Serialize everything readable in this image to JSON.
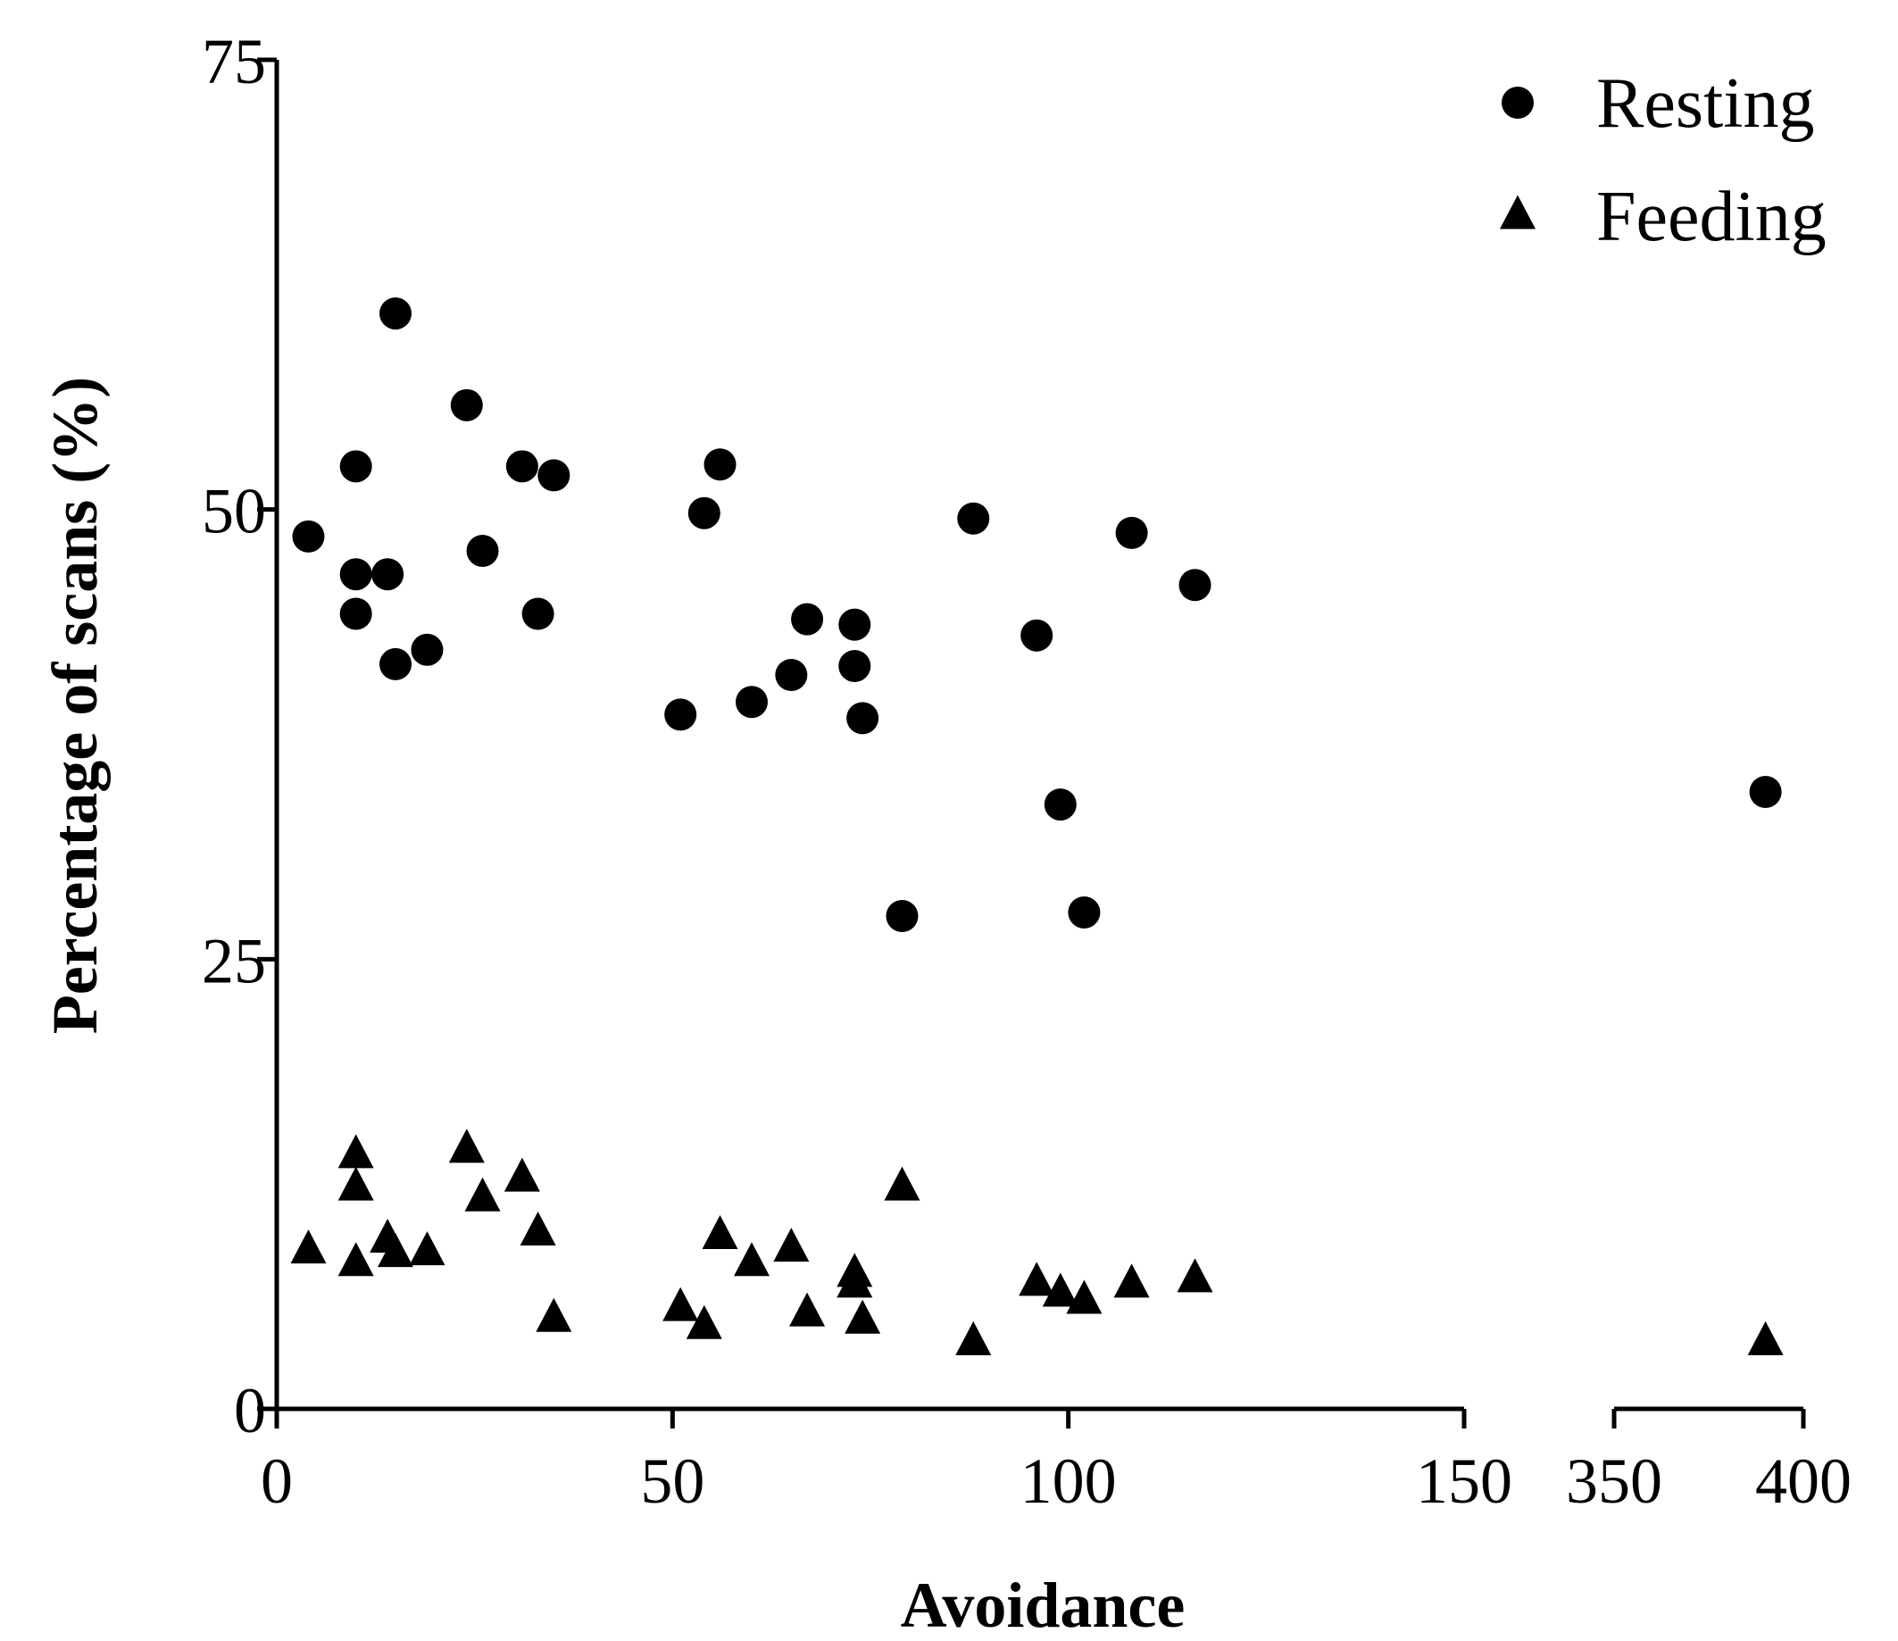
{
  "chart_data": {
    "type": "scatter",
    "title": "",
    "xlabel": "Avoidance",
    "ylabel": "Percentage of scans (%)",
    "ylim": [
      0,
      75
    ],
    "yticks": [
      0,
      25,
      50,
      75
    ],
    "x_segments": [
      {
        "range": [
          0,
          150
        ],
        "ticks": [
          0,
          50,
          100,
          150
        ]
      },
      {
        "range": [
          350,
          400
        ],
        "ticks": [
          350,
          400
        ]
      }
    ],
    "legend_position": "top-right",
    "series": [
      {
        "name": "Resting",
        "marker": "circle",
        "color": "#000000",
        "points": [
          [
            4,
            48.5
          ],
          [
            10,
            52.4
          ],
          [
            10,
            46.4
          ],
          [
            10,
            44.2
          ],
          [
            14,
            46.4
          ],
          [
            15,
            60.9
          ],
          [
            15,
            41.4
          ],
          [
            19,
            42.2
          ],
          [
            24,
            55.8
          ],
          [
            26,
            47.7
          ],
          [
            31,
            52.4
          ],
          [
            33,
            44.2
          ],
          [
            35,
            51.9
          ],
          [
            51,
            38.6
          ],
          [
            54,
            49.8
          ],
          [
            56,
            52.5
          ],
          [
            60,
            39.3
          ],
          [
            65,
            40.8
          ],
          [
            67,
            43.9
          ],
          [
            73,
            43.6
          ],
          [
            73,
            41.3
          ],
          [
            74,
            38.4
          ],
          [
            79,
            27.4
          ],
          [
            88,
            49.5
          ],
          [
            96,
            43.0
          ],
          [
            99,
            33.6
          ],
          [
            102,
            27.6
          ],
          [
            108,
            48.7
          ],
          [
            116,
            45.8
          ],
          [
            390,
            34.3
          ]
        ]
      },
      {
        "name": "Feeding",
        "marker": "triangle",
        "color": "#000000",
        "points": [
          [
            4,
            8.8
          ],
          [
            10,
            14.1
          ],
          [
            10,
            12.3
          ],
          [
            10,
            8.1
          ],
          [
            14,
            9.4
          ],
          [
            15,
            8.6
          ],
          [
            19,
            8.7
          ],
          [
            24,
            14.4
          ],
          [
            26,
            11.7
          ],
          [
            31,
            12.8
          ],
          [
            33,
            9.8
          ],
          [
            35,
            5.0
          ],
          [
            51,
            5.6
          ],
          [
            54,
            4.6
          ],
          [
            56,
            9.6
          ],
          [
            60,
            8.1
          ],
          [
            65,
            8.9
          ],
          [
            67,
            5.3
          ],
          [
            73,
            7.5
          ],
          [
            73,
            6.9
          ],
          [
            74,
            4.9
          ],
          [
            79,
            12.3
          ],
          [
            88,
            3.7
          ],
          [
            96,
            7.0
          ],
          [
            99,
            6.4
          ],
          [
            102,
            6.0
          ],
          [
            108,
            6.9
          ],
          [
            116,
            7.2
          ],
          [
            390,
            3.7
          ]
        ]
      }
    ]
  }
}
